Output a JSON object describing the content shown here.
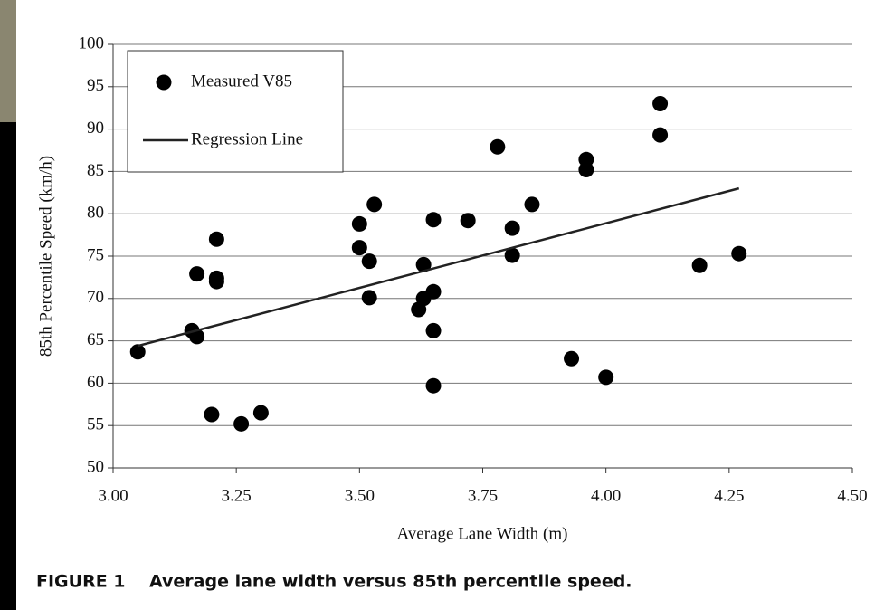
{
  "chart_data": {
    "type": "scatter",
    "x_label": "Average Lane Width (m)",
    "y_label": "85th Percentile Speed (km/h)",
    "caption": "FIGURE 1    Average lane width versus 85th percentile speed.",
    "xlim": [
      3,
      4.5
    ],
    "xticks": [
      {
        "value": 3,
        "label": "3.00"
      },
      {
        "value": 3.25,
        "label": "3.25"
      },
      {
        "value": 3.5,
        "label": "3.50"
      },
      {
        "value": 3.75,
        "label": "3.75"
      },
      {
        "value": 4,
        "label": "4.00"
      },
      {
        "value": 4.25,
        "label": "4.25"
      },
      {
        "value": 4.5,
        "label": "4.50"
      }
    ],
    "ylim": [
      50,
      100
    ],
    "yticks": [
      50,
      55,
      60,
      65,
      70,
      75,
      80,
      85,
      90,
      95,
      100
    ],
    "grid": true,
    "legend": "upper left",
    "series": [
      {
        "name": "Measured V85",
        "type": "scatter",
        "color": "#000000",
        "x": [
          3.05,
          3.16,
          3.17,
          3.17,
          3.2,
          3.21,
          3.21,
          3.21,
          3.26,
          3.3,
          3.5,
          3.5,
          3.52,
          3.52,
          3.53,
          3.62,
          3.63,
          3.63,
          3.65,
          3.65,
          3.65,
          3.65,
          3.72,
          3.78,
          3.81,
          3.81,
          3.85,
          3.93,
          3.96,
          3.96,
          4.0,
          4.11,
          4.11,
          4.19,
          4.27
        ],
        "values": [
          63.7,
          66.2,
          65.5,
          72.9,
          56.3,
          77,
          72.4,
          72,
          55.2,
          56.5,
          78.8,
          76,
          74.4,
          70.1,
          81.1,
          68.7,
          70,
          74,
          70.8,
          66.2,
          79.3,
          59.7,
          79.2,
          87.9,
          78.3,
          75.1,
          81.1,
          62.9,
          86.4,
          85.2,
          60.7,
          93,
          89.3,
          73.9,
          75.3
        ]
      },
      {
        "name": "Regression Line",
        "type": "line",
        "color": "#222222",
        "x": [
          3.05,
          4.27
        ],
        "values": [
          64.4,
          83
        ]
      }
    ]
  }
}
